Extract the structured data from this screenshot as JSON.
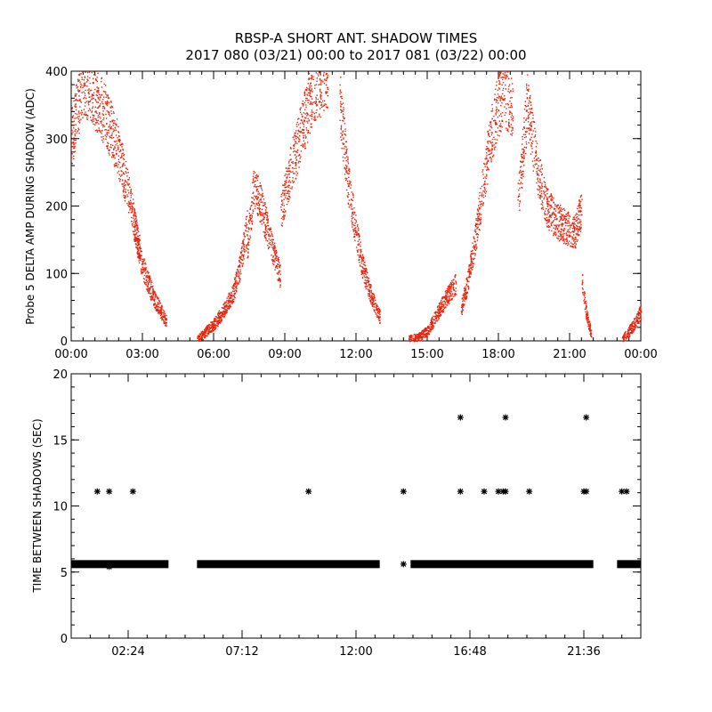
{
  "figure": {
    "title_line1": "RBSP-A SHORT ANT. SHADOW TIMES",
    "title_line2": "2017 080 (03/21) 00:00 to 2017 081 (03/22) 00:00"
  },
  "colors": {
    "points": "#e8230c",
    "axes": "#000000",
    "background": "#ffffff"
  },
  "chart_data": [
    {
      "type": "scatter",
      "name": "top",
      "ylabel": "Probe 5 DELTA AMP DURING SHADOW (ADC)",
      "xlabel": "",
      "xlim": [
        0,
        24
      ],
      "ylim": [
        0,
        400
      ],
      "x_ticks": [
        0,
        3,
        6,
        9,
        12,
        15,
        18,
        21,
        24
      ],
      "x_tick_labels": [
        "00:00",
        "03:00",
        "06:00",
        "09:00",
        "12:00",
        "15:00",
        "18:00",
        "21:00",
        "00:00"
      ],
      "y_ticks": [
        0,
        100,
        200,
        300,
        400
      ],
      "y_tick_labels": [
        "0",
        "100",
        "200",
        "300",
        "400"
      ],
      "color": "#e8230c",
      "segments": [
        {
          "x": [
            0.0,
            0.5,
            1.0,
            1.5,
            2.0,
            2.5,
            2.9
          ],
          "y": [
            300,
            390,
            360,
            330,
            280,
            200,
            130
          ]
        },
        {
          "x": [
            2.6,
            3.0,
            3.3,
            3.6,
            3.8,
            4.0
          ],
          "y": [
            180,
            110,
            80,
            55,
            42,
            30
          ]
        },
        {
          "x": [
            5.3,
            5.6,
            6.0,
            6.4,
            6.8,
            7.1,
            7.4
          ],
          "y": [
            2,
            12,
            25,
            45,
            70,
            110,
            170
          ]
        },
        {
          "x": [
            7.4,
            7.7,
            8.0,
            8.3,
            8.6,
            8.8
          ],
          "y": [
            140,
            230,
            200,
            160,
            120,
            95
          ]
        },
        {
          "x": [
            8.8,
            9.2,
            9.6,
            10.0,
            10.4,
            10.8
          ],
          "y": [
            190,
            250,
            300,
            350,
            380,
            400
          ]
        },
        {
          "x": [
            11.3,
            11.6,
            11.9,
            12.2,
            12.5,
            12.8,
            13.0
          ],
          "y": [
            360,
            250,
            180,
            120,
            80,
            50,
            35
          ]
        },
        {
          "x": [
            14.2,
            14.6,
            15.0,
            15.4,
            15.8,
            16.2
          ],
          "y": [
            2,
            6,
            15,
            40,
            65,
            85
          ]
        },
        {
          "x": [
            16.4,
            16.7,
            17.0,
            17.3,
            17.6,
            17.9,
            18.2,
            18.6
          ],
          "y": [
            45,
            90,
            150,
            220,
            290,
            340,
            370,
            350
          ]
        },
        {
          "x": [
            18.8,
            19.2,
            19.6,
            20.0,
            20.4,
            20.8,
            21.2,
            21.5
          ],
          "y": [
            200,
            350,
            260,
            200,
            180,
            170,
            160,
            200
          ]
        },
        {
          "x": [
            21.5,
            21.7,
            21.9
          ],
          "y": [
            90,
            40,
            10
          ]
        },
        {
          "x": [
            23.2,
            23.5,
            23.8,
            24.0
          ],
          "y": [
            2,
            15,
            30,
            45
          ]
        }
      ]
    },
    {
      "type": "scatter",
      "name": "bottom",
      "ylabel": "TIME BETWEEN SHADOWS (SEC)",
      "xlabel": "",
      "xlim": [
        0,
        24
      ],
      "ylim": [
        0,
        20
      ],
      "x_ticks": [
        2.4,
        7.2,
        12.0,
        16.8,
        21.6
      ],
      "x_tick_labels": [
        "02:24",
        "07:12",
        "12:00",
        "16:48",
        "21:36"
      ],
      "y_ticks": [
        0,
        5,
        10,
        15,
        20
      ],
      "y_tick_labels": [
        "0",
        "5",
        "10",
        "15",
        "20"
      ],
      "marker": "asterisk",
      "baseline_value": 5.6,
      "baseline_ranges": [
        [
          0.0,
          4.1
        ],
        [
          5.3,
          13.0
        ],
        [
          14.3,
          22.0
        ],
        [
          23.0,
          24.0
        ]
      ],
      "points": [
        {
          "x": 1.1,
          "y": 11.1
        },
        {
          "x": 1.6,
          "y": 11.1
        },
        {
          "x": 2.6,
          "y": 11.1
        },
        {
          "x": 10.0,
          "y": 11.1
        },
        {
          "x": 14.0,
          "y": 11.1
        },
        {
          "x": 16.4,
          "y": 11.1
        },
        {
          "x": 16.4,
          "y": 16.7
        },
        {
          "x": 17.4,
          "y": 11.1
        },
        {
          "x": 18.0,
          "y": 11.1
        },
        {
          "x": 18.2,
          "y": 11.1
        },
        {
          "x": 18.3,
          "y": 11.1
        },
        {
          "x": 18.3,
          "y": 16.7
        },
        {
          "x": 19.3,
          "y": 11.1
        },
        {
          "x": 21.6,
          "y": 11.1
        },
        {
          "x": 21.7,
          "y": 11.1
        },
        {
          "x": 21.7,
          "y": 16.7
        },
        {
          "x": 23.2,
          "y": 11.1
        },
        {
          "x": 23.4,
          "y": 11.1
        },
        {
          "x": 14.0,
          "y": 5.6
        },
        {
          "x": 1.6,
          "y": 5.4
        }
      ]
    }
  ]
}
